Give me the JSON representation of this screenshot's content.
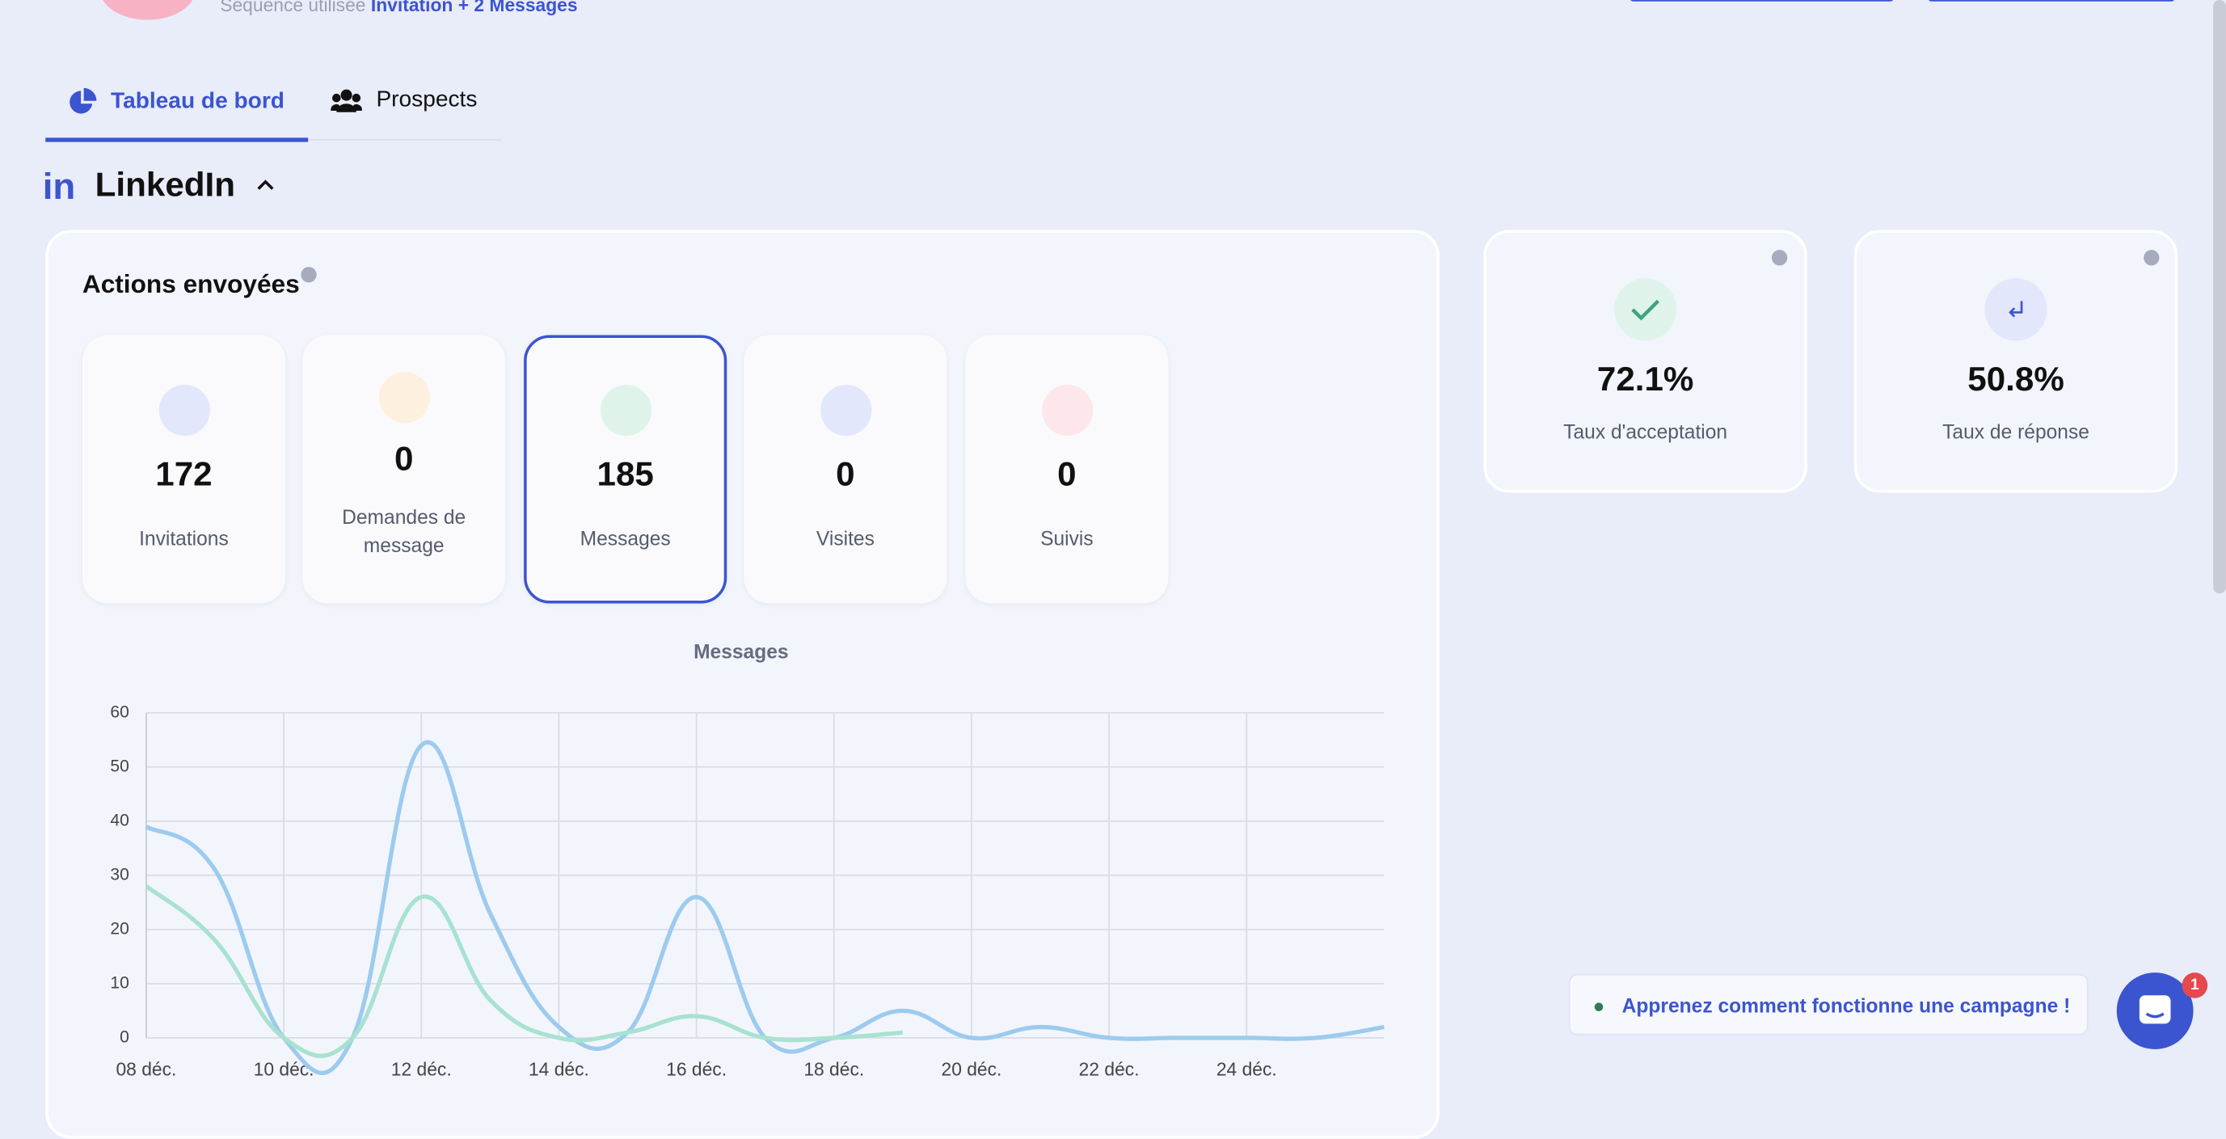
{
  "header": {
    "sequence_label": "Séquence utilisée",
    "sequence_value": "Invitation + 2 Messages"
  },
  "tabs": [
    "Tableau de bord",
    "Prospects"
  ],
  "section": {
    "title": "LinkedIn"
  },
  "actions": {
    "title": "Actions envoyées",
    "cards": [
      {
        "value": "172",
        "label": "Invitations"
      },
      {
        "value": "0",
        "label": "Demandes de message"
      },
      {
        "value": "185",
        "label": "Messages"
      },
      {
        "value": "0",
        "label": "Visites"
      },
      {
        "value": "0",
        "label": "Suivis"
      }
    ]
  },
  "rates": [
    {
      "value": "72.1%",
      "label": "Taux d'acceptation"
    },
    {
      "value": "50.8%",
      "label": "Taux de réponse"
    }
  ],
  "help": {
    "text": "Apprenez comment fonctionne une campagne !",
    "badge": "1"
  },
  "chart_data": {
    "type": "line",
    "title": "Messages",
    "categories": [
      "08 déc.",
      null,
      "10 déc.",
      null,
      "12 déc.",
      null,
      "14 déc.",
      null,
      "16 déc.",
      null,
      "18 déc.",
      null,
      "20 déc.",
      null,
      "22 déc.",
      null,
      "24 déc.",
      null,
      null
    ],
    "series": [
      {
        "color": "#9ccbee",
        "values": [
          39,
          31,
          0,
          0,
          54,
          23,
          2,
          1,
          26,
          0,
          0,
          5,
          0,
          2,
          0,
          0,
          0,
          0,
          2
        ]
      },
      {
        "color": "#a8e2d0",
        "values": [
          28,
          18,
          0,
          0,
          26,
          7,
          0,
          1,
          4,
          0,
          0,
          1,
          null,
          null,
          null,
          null,
          null,
          null,
          null
        ]
      }
    ],
    "ylim": [
      0,
      60
    ],
    "yticks": [
      0,
      10,
      20,
      30,
      40,
      50,
      60
    ],
    "grid": true
  }
}
